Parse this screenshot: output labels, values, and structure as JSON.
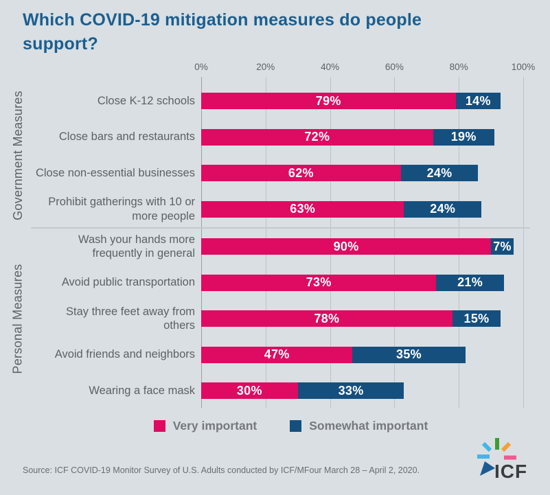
{
  "title": "Which COVID-19 mitigation measures do people support?",
  "colors": {
    "background": "#d9dfe2",
    "title_text": "#1b5e90",
    "very_important": "#df0a62",
    "somewhat_important": "#154f7e",
    "category_label_text": "#5c6166",
    "legend_text": "#75797d",
    "bar_value_text": "#ffffff"
  },
  "chart_data": {
    "type": "bar",
    "orientation": "horizontal",
    "stacked": true,
    "x_axis": {
      "min": 0,
      "max": 100,
      "ticks": [
        "0%",
        "20%",
        "40%",
        "60%",
        "80%",
        "100%"
      ]
    },
    "legend": [
      {
        "label": "Very important",
        "color": "#df0a62"
      },
      {
        "label": "Somewhat important",
        "color": "#154f7e"
      }
    ],
    "groups": [
      {
        "name": "Government Measures",
        "rows": [
          {
            "label": "Close K-12 schools",
            "very_important": 79,
            "somewhat_important": 14
          },
          {
            "label": "Close bars and restaurants",
            "very_important": 72,
            "somewhat_important": 19
          },
          {
            "label": "Close non-essential businesses",
            "very_important": 62,
            "somewhat_important": 24
          },
          {
            "label": "Prohibit gatherings with 10 or more people",
            "very_important": 63,
            "somewhat_important": 24
          }
        ]
      },
      {
        "name": "Personal Measures",
        "rows": [
          {
            "label": "Wash your hands more frequently in general",
            "very_important": 90,
            "somewhat_important": 7
          },
          {
            "label": "Avoid public transportation",
            "very_important": 73,
            "somewhat_important": 21
          },
          {
            "label": "Stay three feet away from others",
            "very_important": 78,
            "somewhat_important": 15
          },
          {
            "label": "Avoid friends and neighbors",
            "very_important": 47,
            "somewhat_important": 35
          },
          {
            "label": "Wearing a face mask",
            "very_important": 30,
            "somewhat_important": 33
          }
        ]
      }
    ]
  },
  "footer": {
    "source": "Source: ICF COVID-19 Monitor Survey of U.S. Adults conducted by ICF/MFour March 28 – April 2, 2020.",
    "logo_text": "ICF"
  }
}
